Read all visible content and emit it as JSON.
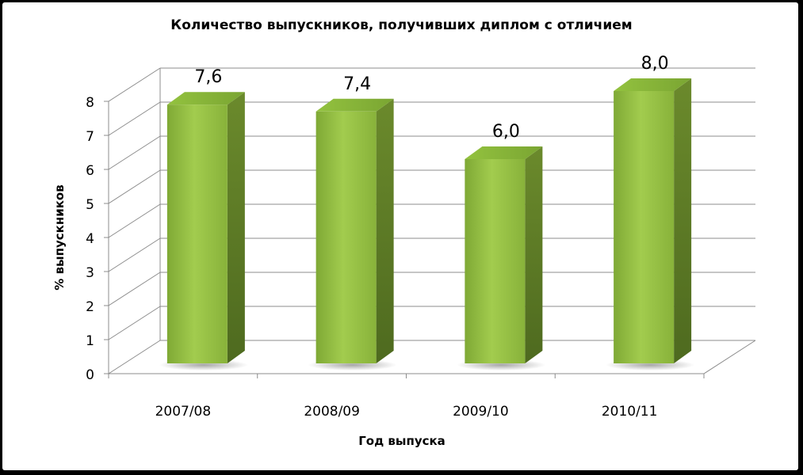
{
  "chart_data": {
    "type": "bar",
    "title": "Количество выпускников, получивших диплом с отличием",
    "xlabel": "Год выпуска",
    "ylabel": "% выпускников",
    "categories": [
      "2007/08",
      "2008/09",
      "2009/10",
      "2010/11"
    ],
    "values": [
      7.6,
      7.4,
      6.0,
      8.0
    ],
    "value_labels": [
      "7,6",
      "7,4",
      "6,0",
      "8,0"
    ],
    "ylim": [
      0,
      8
    ],
    "yticks": [
      "0",
      "1",
      "2",
      "3",
      "4",
      "5",
      "6",
      "7",
      "8"
    ],
    "grid": true,
    "style": "3d-column",
    "bar_color": "#8fbc3a"
  }
}
